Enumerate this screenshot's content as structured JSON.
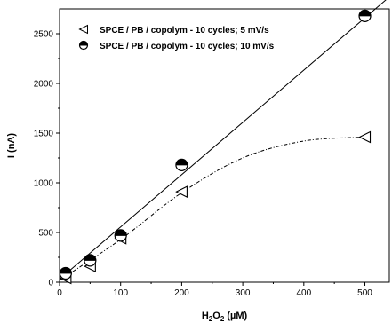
{
  "chart_data": {
    "type": "scatter",
    "xlabel": "H2O2 (µM)",
    "xlabel_parts": {
      "base": "H",
      "sub1": "2",
      "mid": "O",
      "sub2": "2",
      "unit": " (µM)"
    },
    "ylabel": "I (nA)",
    "xlim": [
      0,
      540
    ],
    "ylim": [
      0,
      2750
    ],
    "xticks": [
      0,
      100,
      200,
      300,
      400,
      500
    ],
    "yticks": [
      0,
      500,
      1000,
      1500,
      2000,
      2500
    ],
    "xtick_labels": [
      "0",
      "100",
      "200",
      "300",
      "400",
      "500"
    ],
    "ytick_labels": [
      "0",
      "500",
      "1000",
      "1500",
      "2000",
      "2500"
    ],
    "grid": false,
    "legend_position": "top-left",
    "series": [
      {
        "name": "SPCE / PB / copolym - 10 cycles; 5 mV/s",
        "marker": "left-triangle-open",
        "fit": "dotted-curve",
        "x": [
          10,
          50,
          100,
          200,
          500
        ],
        "y": [
          40,
          160,
          440,
          910,
          1460
        ]
      },
      {
        "name": "SPCE / PB / copolym - 10 cycles; 10 mV/s",
        "marker": "half-filled-circle",
        "fit": "solid-line",
        "x": [
          10,
          50,
          100,
          200,
          500
        ],
        "y": [
          90,
          220,
          470,
          1180,
          2680
        ]
      }
    ],
    "fit_lines": {
      "linear": {
        "x0": 0,
        "y0": 30,
        "x1": 540,
        "y1": 2870
      },
      "curve": [
        [
          0,
          20
        ],
        [
          100,
          430
        ],
        [
          200,
          900
        ],
        [
          300,
          1250
        ],
        [
          400,
          1420
        ],
        [
          500,
          1460
        ]
      ]
    }
  }
}
